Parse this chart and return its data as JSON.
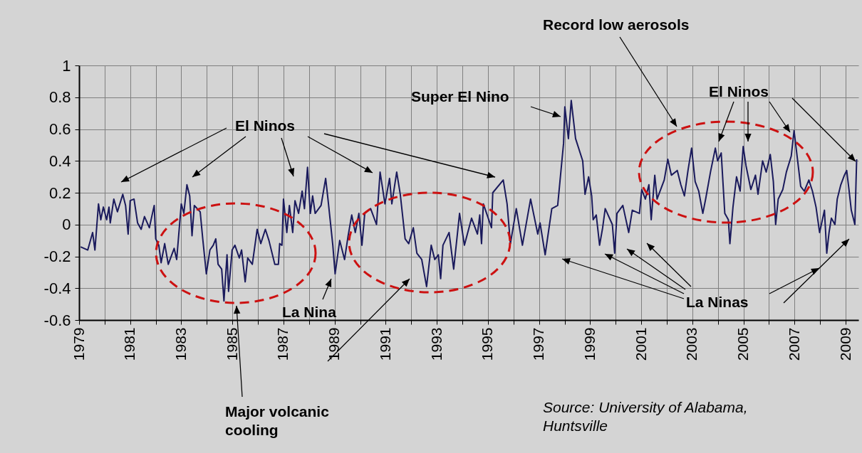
{
  "chart_data": {
    "type": "line",
    "grid": true,
    "line_style": "solid",
    "xlim": [
      1979,
      2009.5
    ],
    "xticks": [
      1979,
      {
        "value": 1980,
        "label": null
      },
      1981,
      {
        "value": 1982,
        "label": null
      },
      1983,
      {
        "value": 1984,
        "label": null
      },
      1985,
      {
        "value": 1986,
        "label": null
      },
      1987,
      {
        "value": 1988,
        "label": null
      },
      1989,
      {
        "value": 1990,
        "label": null
      },
      1991,
      {
        "value": 1992,
        "label": null
      },
      1993,
      {
        "value": 1994,
        "label": null
      },
      1995,
      {
        "value": 1996,
        "label": null
      },
      1997,
      {
        "value": 1998,
        "label": null
      },
      1999,
      {
        "value": 2000,
        "label": null
      },
      2001,
      {
        "value": 2002,
        "label": null
      },
      2003,
      {
        "value": 2004,
        "label": null
      },
      2005,
      {
        "value": 2006,
        "label": null
      },
      2007,
      {
        "value": 2008,
        "label": null
      },
      2009
    ],
    "ylim": [
      -0.6,
      1
    ],
    "yticks": [
      -0.6,
      -0.4,
      -0.2,
      0,
      0.2,
      0.4,
      0.6,
      0.8,
      1
    ],
    "annotations": [
      "Record low aerosols",
      "Super El Nino",
      "El Ninos",
      "El Ninos",
      "La Nina",
      "La Ninas",
      "Major volcanic cooling",
      "Source: University of Alabama, Huntsville"
    ],
    "series": [
      {
        "color": "#1a1a5c",
        "x": [
          1979.06,
          1979.34,
          1979.53,
          1979.62,
          1979.76,
          1979.85,
          1979.95,
          1980.08,
          1980.17,
          1980.22,
          1980.36,
          1980.5,
          1980.71,
          1980.82,
          1980.92,
          1981.0,
          1981.15,
          1981.29,
          1981.43,
          1981.56,
          1981.75,
          1981.94,
          1982.0,
          1982.12,
          1982.21,
          1982.35,
          1982.49,
          1982.72,
          1982.82,
          1983.0,
          1983.1,
          1983.22,
          1983.33,
          1983.42,
          1983.51,
          1983.74,
          1983.84,
          1983.98,
          1984.12,
          1984.25,
          1984.35,
          1984.44,
          1984.58,
          1984.67,
          1984.79,
          1984.85,
          1984.99,
          1985.1,
          1985.27,
          1985.36,
          1985.5,
          1985.6,
          1985.78,
          1985.97,
          1986.11,
          1986.29,
          1986.43,
          1986.66,
          1986.8,
          1986.85,
          1986.94,
          1987.0,
          1987.13,
          1987.23,
          1987.36,
          1987.45,
          1987.59,
          1987.73,
          1987.82,
          1987.94,
          1988.05,
          1988.14,
          1988.24,
          1988.47,
          1988.65,
          1988.74,
          1988.93,
          1989.02,
          1989.2,
          1989.39,
          1989.53,
          1989.67,
          1989.81,
          1989.95,
          1990.07,
          1990.18,
          1990.41,
          1990.64,
          1990.78,
          1990.97,
          1991.15,
          1991.24,
          1991.43,
          1991.57,
          1991.76,
          1991.9,
          1992.08,
          1992.22,
          1992.41,
          1992.6,
          1992.78,
          1992.92,
          1993.06,
          1993.15,
          1993.24,
          1993.48,
          1993.66,
          1993.89,
          1994.08,
          1994.36,
          1994.59,
          1994.68,
          1994.75,
          1994.82,
          1995.14,
          1995.19,
          1995.6,
          1995.75,
          1995.88,
          1996.11,
          1996.35,
          1996.67,
          1996.95,
          1997.04,
          1997.24,
          1997.5,
          1997.73,
          1997.96,
          1998.01,
          1998.15,
          1998.26,
          1998.43,
          1998.71,
          1998.8,
          1998.94,
          1999.06,
          1999.12,
          1999.24,
          1999.37,
          1999.49,
          1999.59,
          1999.87,
          1999.96,
          2000.05,
          2000.28,
          2000.51,
          2000.65,
          2000.93,
          2001.02,
          2001.16,
          2001.3,
          2001.39,
          2001.53,
          2001.62,
          2001.9,
          2002.04,
          2002.18,
          2002.41,
          2002.55,
          2002.69,
          2002.83,
          2002.97,
          2003.11,
          2003.25,
          2003.41,
          2003.52,
          2003.71,
          2003.9,
          2003.99,
          2004.13,
          2004.27,
          2004.41,
          2004.47,
          2004.59,
          2004.73,
          2004.87,
          2004.99,
          2005.1,
          2005.29,
          2005.47,
          2005.57,
          2005.75,
          2005.89,
          2006.05,
          2006.17,
          2006.26,
          2006.36,
          2006.54,
          2006.68,
          2006.87,
          2006.98,
          2007.1,
          2007.24,
          2007.38,
          2007.56,
          2007.7,
          2007.84,
          2007.98,
          2008.17,
          2008.26,
          2008.35,
          2008.44,
          2008.58,
          2008.67,
          2008.81,
          2008.95,
          2009.04,
          2009.13,
          2009.22,
          2009.36,
          2009.43
        ],
        "values": [
          -0.14,
          -0.16,
          -0.05,
          -0.16,
          0.13,
          0.03,
          0.11,
          0.03,
          0.11,
          0.01,
          0.16,
          0.08,
          0.19,
          0.12,
          -0.06,
          0.15,
          0.16,
          0.01,
          -0.03,
          0.05,
          -0.02,
          0.12,
          -0.09,
          -0.13,
          -0.24,
          -0.12,
          -0.25,
          -0.15,
          -0.22,
          0.13,
          0.07,
          0.25,
          0.18,
          -0.07,
          0.12,
          0.08,
          -0.09,
          -0.31,
          -0.16,
          -0.13,
          -0.09,
          -0.25,
          -0.28,
          -0.48,
          -0.19,
          -0.42,
          -0.16,
          -0.13,
          -0.21,
          -0.16,
          -0.36,
          -0.21,
          -0.25,
          -0.03,
          -0.12,
          -0.03,
          -0.1,
          -0.25,
          -0.25,
          -0.12,
          -0.13,
          0.16,
          -0.05,
          0.12,
          -0.05,
          0.15,
          0.07,
          0.21,
          0.1,
          0.36,
          0.07,
          0.18,
          0.07,
          0.12,
          0.29,
          0.16,
          -0.13,
          -0.31,
          -0.1,
          -0.22,
          -0.07,
          0.06,
          -0.05,
          0.07,
          -0.13,
          0.07,
          0.1,
          0.0,
          0.33,
          0.13,
          0.29,
          0.13,
          0.33,
          0.19,
          -0.09,
          -0.12,
          -0.02,
          -0.18,
          -0.22,
          -0.39,
          -0.13,
          -0.22,
          -0.19,
          -0.34,
          -0.13,
          -0.05,
          -0.28,
          0.07,
          -0.13,
          0.04,
          -0.06,
          0.06,
          -0.12,
          0.13,
          -0.02,
          0.2,
          0.28,
          0.13,
          -0.12,
          0.1,
          -0.13,
          0.16,
          -0.06,
          0.01,
          -0.19,
          0.1,
          0.12,
          0.51,
          0.74,
          0.54,
          0.78,
          0.54,
          0.4,
          0.19,
          0.3,
          0.18,
          0.03,
          0.06,
          -0.13,
          -0.02,
          0.1,
          0.0,
          -0.18,
          0.07,
          0.12,
          -0.05,
          0.09,
          0.07,
          0.22,
          0.16,
          0.25,
          0.03,
          0.31,
          0.16,
          0.28,
          0.41,
          0.31,
          0.34,
          0.25,
          0.18,
          0.34,
          0.48,
          0.27,
          0.21,
          0.07,
          0.16,
          0.33,
          0.48,
          0.4,
          0.45,
          0.07,
          0.03,
          -0.12,
          0.11,
          0.3,
          0.21,
          0.49,
          0.37,
          0.22,
          0.31,
          0.19,
          0.4,
          0.33,
          0.44,
          0.27,
          0.0,
          0.16,
          0.22,
          0.33,
          0.43,
          0.59,
          0.43,
          0.24,
          0.21,
          0.28,
          0.21,
          0.11,
          -0.05,
          0.09,
          -0.18,
          -0.05,
          0.04,
          0.0,
          0.16,
          0.25,
          0.31,
          0.34,
          0.22,
          0.09,
          0.0,
          0.41
        ]
      }
    ]
  }
}
